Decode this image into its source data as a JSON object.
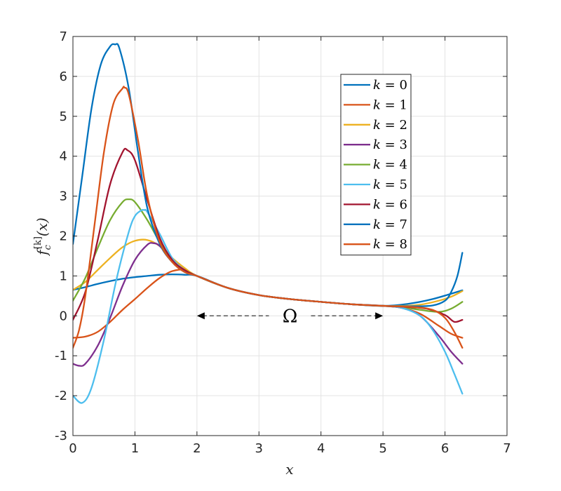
{
  "chart_data": {
    "type": "line",
    "xlabel": "x",
    "ylabel": {
      "base": "f",
      "sub": "c",
      "sup": "[k]",
      "arg": "(x)"
    },
    "xlim": [
      0,
      7
    ],
    "ylim": [
      -3,
      7
    ],
    "xticks": [
      "0",
      "1",
      "2",
      "3",
      "4",
      "5",
      "6",
      "7"
    ],
    "yticks": [
      "-3",
      "-2",
      "-1",
      "0",
      "1",
      "2",
      "3",
      "4",
      "5",
      "6",
      "7"
    ],
    "grid": true,
    "legend_position": "top-right",
    "annotation": {
      "label": "Ω",
      "from_x": 2,
      "to_x": 5,
      "y": 0,
      "style": "dashed double arrow"
    },
    "colors": [
      "#0072BD",
      "#D95319",
      "#EDB120",
      "#7E2F8E",
      "#77AC30",
      "#4DBEEE",
      "#A2142F",
      "#0072BD",
      "#D95319"
    ],
    "series": [
      {
        "name": "k = 0",
        "x": [
          0,
          0.2,
          0.4,
          0.6,
          0.8,
          1.0,
          1.2,
          1.4,
          1.6,
          1.8,
          2.0,
          2.5,
          3.0,
          3.5,
          4.0,
          4.5,
          5.0,
          5.4,
          5.8,
          6.28
        ],
        "y": [
          0.65,
          0.72,
          0.8,
          0.87,
          0.93,
          0.97,
          1.0,
          1.03,
          1.04,
          1.03,
          1.0,
          0.7,
          0.52,
          0.42,
          0.35,
          0.29,
          0.25,
          0.3,
          0.42,
          0.64
        ]
      },
      {
        "name": "k = 1",
        "x": [
          0,
          0.2,
          0.4,
          0.6,
          0.8,
          1.0,
          1.2,
          1.4,
          1.6,
          1.8,
          2.0,
          2.5,
          3.0,
          3.5,
          4.0,
          4.5,
          5.0,
          5.3,
          5.6,
          5.9,
          6.1,
          6.28
        ],
        "y": [
          -0.55,
          -0.52,
          -0.4,
          -0.15,
          0.15,
          0.42,
          0.7,
          0.95,
          1.12,
          1.15,
          1.0,
          0.7,
          0.52,
          0.42,
          0.35,
          0.29,
          0.25,
          0.2,
          0.05,
          -0.25,
          -0.45,
          -0.55
        ]
      },
      {
        "name": "k = 2",
        "x": [
          0,
          0.2,
          0.4,
          0.6,
          0.8,
          1.0,
          1.2,
          1.4,
          1.6,
          1.8,
          2.0,
          2.5,
          3.0,
          3.5,
          4.0,
          4.5,
          5.0,
          5.3,
          5.6,
          5.9,
          6.1,
          6.28
        ],
        "y": [
          0.65,
          0.85,
          1.15,
          1.45,
          1.72,
          1.88,
          1.9,
          1.75,
          1.45,
          1.2,
          1.0,
          0.7,
          0.52,
          0.42,
          0.35,
          0.29,
          0.25,
          0.25,
          0.28,
          0.38,
          0.48,
          0.62
        ]
      },
      {
        "name": "k = 3",
        "x": [
          0,
          0.1,
          0.2,
          0.4,
          0.6,
          0.8,
          1.0,
          1.2,
          1.3,
          1.4,
          1.6,
          1.8,
          2.0,
          2.5,
          3.0,
          3.5,
          4.0,
          4.5,
          5.0,
          5.3,
          5.6,
          5.9,
          6.1,
          6.28
        ],
        "y": [
          -1.2,
          -1.25,
          -1.2,
          -0.75,
          -0.05,
          0.75,
          1.4,
          1.78,
          1.82,
          1.75,
          1.4,
          1.15,
          1.0,
          0.7,
          0.52,
          0.42,
          0.35,
          0.29,
          0.25,
          0.2,
          0.0,
          -0.5,
          -0.9,
          -1.2
        ]
      },
      {
        "name": "k = 4",
        "x": [
          0,
          0.2,
          0.4,
          0.6,
          0.8,
          0.9,
          1.0,
          1.2,
          1.4,
          1.6,
          1.8,
          2.0,
          2.5,
          3.0,
          3.5,
          4.0,
          4.5,
          5.0,
          5.3,
          5.6,
          5.9,
          6.1,
          6.28
        ],
        "y": [
          0.38,
          0.95,
          1.7,
          2.4,
          2.85,
          2.92,
          2.85,
          2.4,
          1.85,
          1.4,
          1.15,
          1.0,
          0.7,
          0.52,
          0.42,
          0.35,
          0.29,
          0.25,
          0.22,
          0.15,
          0.1,
          0.18,
          0.35
        ]
      },
      {
        "name": "k = 5",
        "x": [
          0,
          0.15,
          0.3,
          0.5,
          0.7,
          0.9,
          1.0,
          1.1,
          1.15,
          1.2,
          1.4,
          1.6,
          1.8,
          2.0,
          2.5,
          3.0,
          3.5,
          4.0,
          4.5,
          5.0,
          5.3,
          5.6,
          5.8,
          6.0,
          6.15,
          6.28
        ],
        "y": [
          -2.0,
          -2.18,
          -1.8,
          -0.6,
          0.9,
          2.1,
          2.5,
          2.64,
          2.65,
          2.6,
          2.05,
          1.45,
          1.15,
          1.0,
          0.7,
          0.52,
          0.42,
          0.35,
          0.29,
          0.25,
          0.2,
          0.0,
          -0.35,
          -0.9,
          -1.45,
          -1.95
        ]
      },
      {
        "name": "k = 6",
        "x": [
          0,
          0.2,
          0.4,
          0.6,
          0.8,
          0.88,
          1.0,
          1.2,
          1.4,
          1.6,
          1.8,
          2.0,
          2.5,
          3.0,
          3.5,
          4.0,
          4.5,
          5.0,
          5.4,
          5.7,
          6.0,
          6.15,
          6.28
        ],
        "y": [
          -0.1,
          0.6,
          1.9,
          3.3,
          4.1,
          4.15,
          3.9,
          2.9,
          1.95,
          1.4,
          1.15,
          1.0,
          0.7,
          0.52,
          0.42,
          0.35,
          0.29,
          0.25,
          0.22,
          0.18,
          0.02,
          -0.15,
          -0.1
        ]
      },
      {
        "name": "k = 7",
        "x": [
          0,
          0.15,
          0.3,
          0.45,
          0.6,
          0.68,
          0.75,
          0.9,
          1.05,
          1.2,
          1.4,
          1.6,
          1.8,
          2.0,
          2.5,
          3.0,
          3.5,
          4.0,
          4.5,
          5.0,
          5.5,
          5.8,
          6.0,
          6.1,
          6.2,
          6.28
        ],
        "y": [
          1.8,
          3.5,
          5.2,
          6.3,
          6.75,
          6.8,
          6.7,
          5.7,
          4.1,
          2.7,
          1.8,
          1.35,
          1.1,
          1.0,
          0.7,
          0.52,
          0.42,
          0.35,
          0.29,
          0.25,
          0.24,
          0.26,
          0.38,
          0.6,
          1.0,
          1.58
        ]
      },
      {
        "name": "k = 8",
        "x": [
          0,
          0.1,
          0.2,
          0.35,
          0.5,
          0.65,
          0.8,
          0.83,
          0.9,
          1.05,
          1.2,
          1.4,
          1.6,
          1.8,
          2.0,
          2.5,
          3.0,
          3.5,
          4.0,
          4.5,
          5.0,
          5.5,
          5.8,
          6.0,
          6.15,
          6.28
        ],
        "y": [
          -0.8,
          -0.35,
          0.5,
          2.3,
          4.1,
          5.3,
          5.7,
          5.72,
          5.55,
          4.4,
          3.0,
          1.85,
          1.35,
          1.1,
          1.0,
          0.7,
          0.52,
          0.42,
          0.35,
          0.29,
          0.25,
          0.22,
          0.15,
          -0.05,
          -0.4,
          -0.8
        ]
      }
    ]
  }
}
